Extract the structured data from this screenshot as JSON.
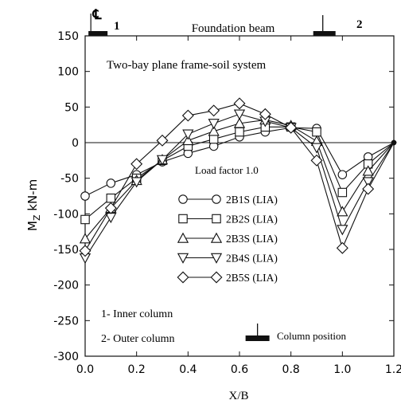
{
  "chart_data": {
    "type": "line",
    "title": "Two-bay plane frame-soil system",
    "top_label": "Foundation beam",
    "xlabel": "X/B",
    "ylabel_main": "M",
    "ylabel_sub": "Z",
    "ylabel_unit": " kN-m",
    "xlim": [
      0.0,
      1.2
    ],
    "ylim": [
      -300,
      150
    ],
    "x_ticks": [
      0.0,
      0.2,
      0.4,
      0.6,
      0.8,
      1.0,
      1.2
    ],
    "x_tick_labels": [
      "0.0",
      "0.2",
      "0.4",
      "0.6",
      "0.8",
      "1.0",
      "1.2"
    ],
    "y_ticks": [
      150,
      100,
      50,
      0,
      -50,
      -100,
      -150,
      -200,
      -250,
      -300
    ],
    "y_tick_labels": [
      "150",
      "100",
      "50",
      "0",
      "-50",
      "-100",
      "-150",
      "-200",
      "-250",
      "-300"
    ],
    "legend_title": "Load factor 1.0",
    "legend_position": "center",
    "column_markers": {
      "centerline_symbol": "℄",
      "inner_label": "1",
      "outer_label": "2",
      "inner_x": 0.05,
      "outer_x": 0.93,
      "position_marker_x": 0.67
    },
    "notes": {
      "inner": "1- Inner column",
      "outer": "2- Outer column",
      "position": "Column position"
    },
    "x": [
      0.0,
      0.1,
      0.2,
      0.3,
      0.4,
      0.5,
      0.6,
      0.7,
      0.8,
      0.9,
      1.0,
      1.1,
      1.2
    ],
    "series": [
      {
        "name": "2B1S (LIA)",
        "marker": "circle",
        "values": [
          -75,
          -57,
          -45,
          -27,
          -15,
          -5,
          8,
          15,
          21,
          20,
          -45,
          -20,
          0
        ]
      },
      {
        "name": "2B2S (LIA)",
        "marker": "square",
        "values": [
          -108,
          -78,
          -50,
          -25,
          -5,
          5,
          15,
          22,
          22,
          15,
          -70,
          -30,
          0
        ]
      },
      {
        "name": "2B3S (LIA)",
        "marker": "triangle-up",
        "values": [
          -135,
          -92,
          -53,
          -24,
          3,
          16,
          27,
          32,
          24,
          2,
          -97,
          -40,
          0
        ]
      },
      {
        "name": "2B4S (LIA)",
        "marker": "triangle-down",
        "values": [
          -162,
          -105,
          -55,
          -24,
          12,
          27,
          40,
          30,
          21,
          -7,
          -122,
          -55,
          0
        ]
      },
      {
        "name": "2B5S (LIA)",
        "marker": "diamond",
        "values": [
          -152,
          -92,
          -30,
          3,
          38,
          45,
          55,
          40,
          21,
          -25,
          -148,
          -65,
          0
        ]
      }
    ]
  }
}
